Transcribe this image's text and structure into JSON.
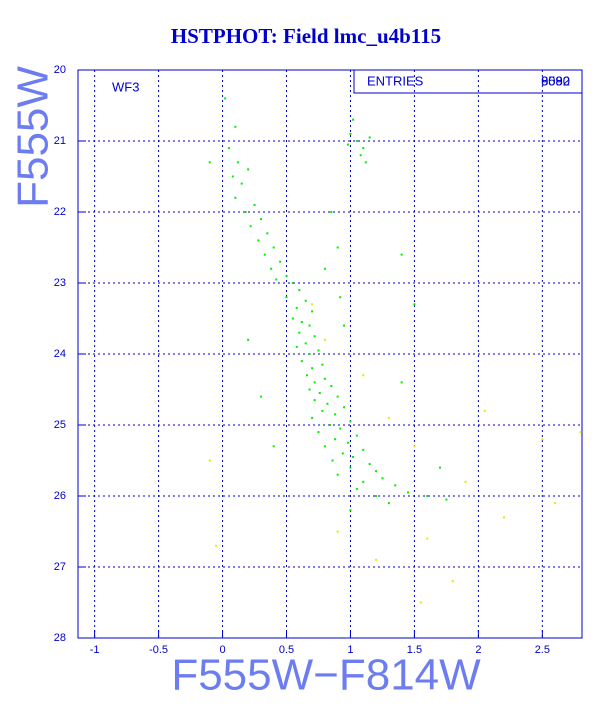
{
  "chart_data": {
    "type": "scatter",
    "title": "HSTPHOT: Field lmc_u4b115",
    "x_label": "F555W−F814W",
    "y_label": "F555W",
    "annotation": "WF3",
    "stats": {
      "label": "ENTRIES",
      "values": [
        "9092",
        "8580"
      ]
    },
    "xlim": [
      -1.13,
      2.81
    ],
    "ylim": [
      28,
      20
    ],
    "xticks": [
      -1,
      -0.5,
      0,
      0.5,
      1,
      1.5,
      2,
      2.5
    ],
    "yticks": [
      20,
      21,
      22,
      23,
      24,
      25,
      26,
      27,
      28
    ],
    "grid": true,
    "series": [
      {
        "color": "#00ee00",
        "x": [
          0.02,
          0.1,
          0.05,
          0.12,
          0.08,
          0.15,
          0.2,
          0.1,
          0.25,
          0.18,
          0.3,
          0.22,
          0.35,
          0.28,
          0.4,
          0.33,
          0.45,
          0.38,
          0.5,
          0.42,
          0.55,
          0.6,
          0.5,
          0.65,
          0.58,
          0.7,
          0.55,
          0.62,
          0.68,
          0.6,
          0.72,
          0.65,
          0.58,
          0.75,
          0.68,
          0.62,
          0.78,
          0.7,
          0.66,
          0.8,
          0.72,
          0.85,
          0.68,
          0.76,
          0.9,
          0.72,
          0.82,
          0.95,
          0.78,
          0.88,
          0.7,
          1.0,
          0.84,
          0.92,
          0.75,
          1.05,
          0.88,
          0.98,
          0.8,
          1.1,
          0.94,
          1.02,
          0.86,
          1.15,
          1.0,
          1.2,
          0.9,
          1.25,
          1.1,
          1.35,
          1.05,
          1.45,
          1.2,
          1.6,
          1.3,
          1.75,
          1.0,
          1.0,
          1.05,
          1.1,
          0.98,
          1.15,
          1.08,
          1.02,
          1.12,
          0.85,
          0.9,
          0.8,
          0.92,
          0.95,
          -0.1,
          1.5,
          1.4,
          0.3,
          0.4,
          1.7,
          0.2,
          1.4
        ],
        "y": [
          20.4,
          20.8,
          21.1,
          21.3,
          21.5,
          21.6,
          21.4,
          21.8,
          21.9,
          22.0,
          22.1,
          22.2,
          22.3,
          22.4,
          22.5,
          22.6,
          22.7,
          22.8,
          22.9,
          22.95,
          23.0,
          23.1,
          23.2,
          23.25,
          23.35,
          23.4,
          23.5,
          23.55,
          23.6,
          23.7,
          23.75,
          23.85,
          23.9,
          23.95,
          24.0,
          24.1,
          24.15,
          24.2,
          24.3,
          24.35,
          24.4,
          24.45,
          24.5,
          24.55,
          24.6,
          24.65,
          24.7,
          24.75,
          24.8,
          24.85,
          24.9,
          24.95,
          25.0,
          25.05,
          25.1,
          25.15,
          25.2,
          25.25,
          25.3,
          25.35,
          25.4,
          25.45,
          25.5,
          25.55,
          25.6,
          25.65,
          25.7,
          25.75,
          25.8,
          25.85,
          25.9,
          25.95,
          26.0,
          26.0,
          26.1,
          26.05,
          26.2,
          20.9,
          21.0,
          21.1,
          21.05,
          20.95,
          21.2,
          20.7,
          21.3,
          22.0,
          22.5,
          22.8,
          23.2,
          23.6,
          21.3,
          23.3,
          24.4,
          24.6,
          25.3,
          25.6,
          23.8,
          22.6
        ]
      },
      {
        "color": "#e6e600",
        "x": [
          0.7,
          0.8,
          1.1,
          1.3,
          1.5,
          1.9,
          2.2,
          1.6,
          2.5,
          2.8,
          1.8,
          1.55,
          -0.1,
          -0.05,
          0.9,
          2.05,
          1.2,
          2.6
        ],
        "y": [
          23.3,
          23.8,
          24.3,
          24.9,
          25.3,
          25.8,
          26.3,
          26.6,
          25.2,
          25.1,
          27.2,
          27.5,
          25.5,
          26.7,
          26.5,
          24.8,
          26.9,
          26.1
        ]
      }
    ]
  }
}
